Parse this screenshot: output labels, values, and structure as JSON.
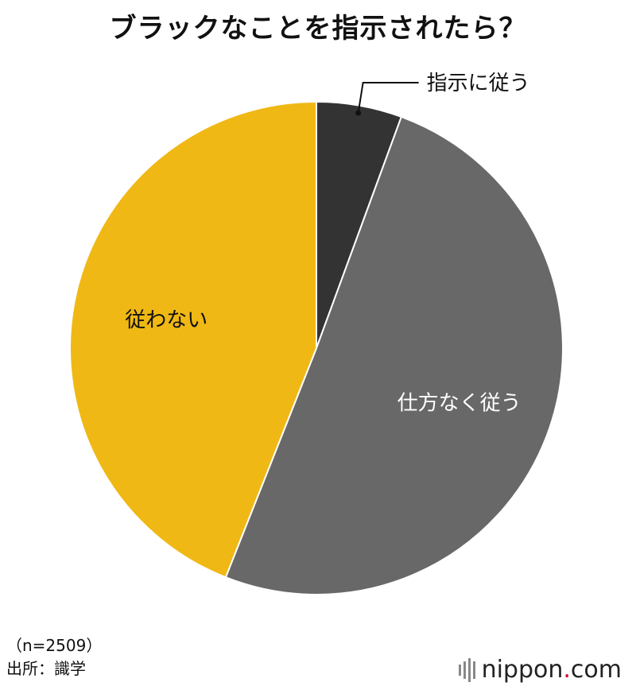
{
  "chart_data": {
    "type": "pie",
    "title": "ブラックなことを指示されたら？",
    "categories": [
      "指示に従う",
      "仕方なく従う",
      "従わない"
    ],
    "values": [
      5.6,
      50.4,
      44.0
    ],
    "colors": [
      "#333333",
      "#686868",
      "#f0b814"
    ],
    "label_colors": [
      "#111111",
      "#ffffff",
      "#111111"
    ],
    "start_angle_deg": 0,
    "direction": "clockwise"
  },
  "notes": {
    "sample": "（n=2509）",
    "source": "出所：識学"
  },
  "brand": {
    "name_main": "nippon",
    "name_dot": ".",
    "name_tld": "com"
  }
}
